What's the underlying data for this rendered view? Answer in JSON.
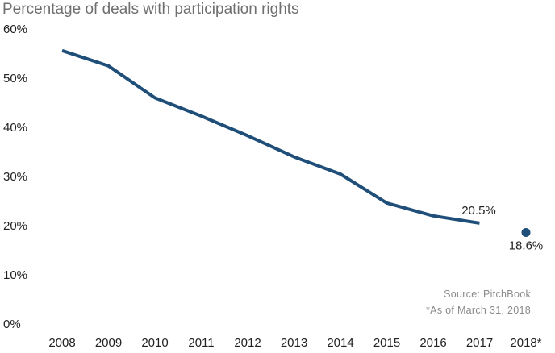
{
  "chart_data": {
    "type": "line",
    "title": "Percentage of deals with participation rights",
    "xlabel": "",
    "ylabel": "",
    "categories": [
      "2008",
      "2009",
      "2010",
      "2011",
      "2012",
      "2013",
      "2014",
      "2015",
      "2016",
      "2017",
      "2018*"
    ],
    "y_ticks": [
      "0%",
      "10%",
      "20%",
      "30%",
      "40%",
      "50%",
      "60%"
    ],
    "ylim": [
      0,
      60
    ],
    "grid": false,
    "legend": "none",
    "series": [
      {
        "values": [
          55.6,
          52.5,
          46.0,
          42.3,
          38.3,
          34.0,
          30.5,
          24.6,
          22.0,
          20.5,
          null
        ],
        "color": "#1f4e79"
      }
    ],
    "highlight_point": {
      "category": "2018*",
      "value": 18.6,
      "color": "#1f4e79"
    },
    "data_labels": [
      {
        "category": "2017",
        "value": 20.5,
        "text": "20.5%"
      },
      {
        "category": "2018*",
        "value": 18.6,
        "text": "18.6%"
      }
    ],
    "annotations": [
      "Source: PitchBook",
      "*As of March 31, 2018"
    ]
  }
}
